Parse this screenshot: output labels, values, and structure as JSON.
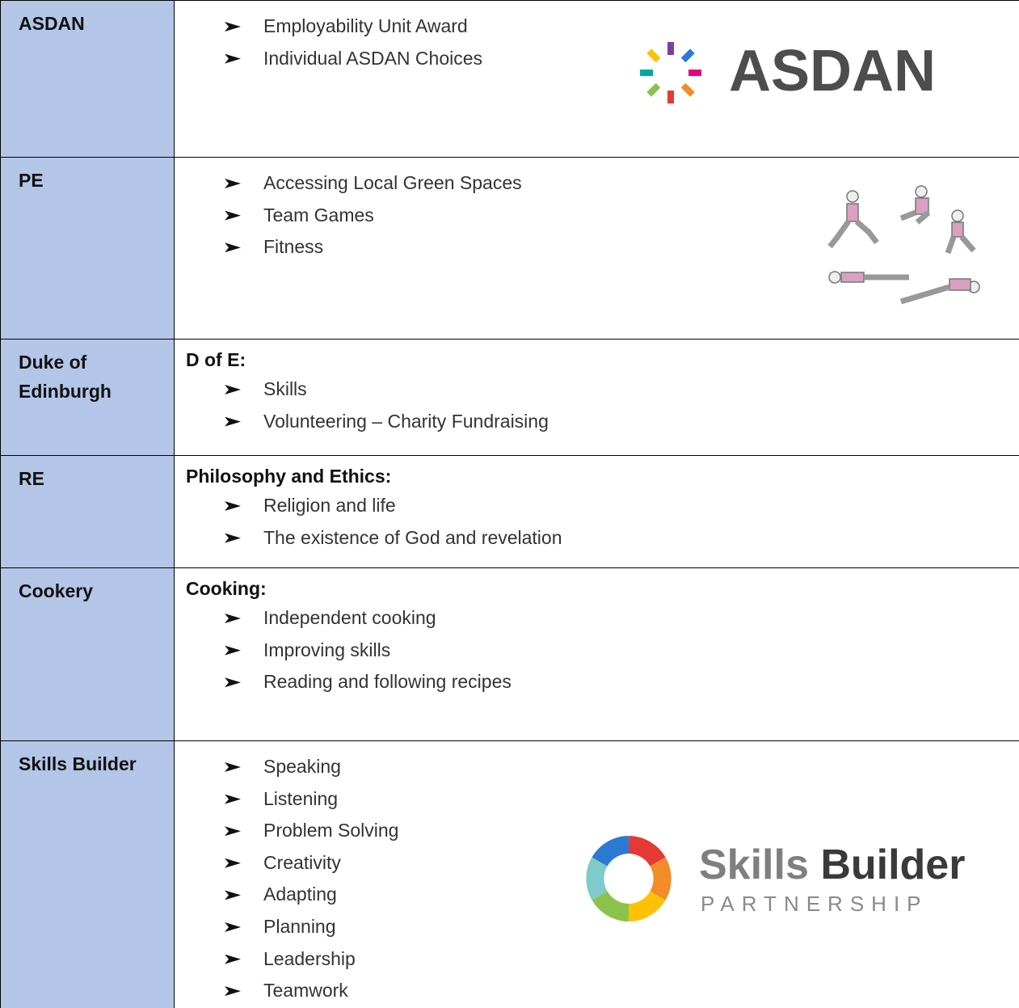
{
  "table": {
    "rows": [
      {
        "subject": "ASDAN",
        "items": [
          "Employability Unit Award",
          "Individual ASDAN Choices"
        ],
        "logo": {
          "text": "ASDAN"
        }
      },
      {
        "subject": "PE",
        "items": [
          "Accessing Local Green Spaces",
          "Team Games",
          "Fitness"
        ]
      },
      {
        "subject": "Duke of Edinburgh",
        "heading": "D of E:",
        "items": [
          "Skills",
          "Volunteering – Charity Fundraising"
        ]
      },
      {
        "subject": "RE",
        "heading": "Philosophy and Ethics:",
        "items": [
          "Religion and life",
          "The existence of God and revelation"
        ]
      },
      {
        "subject": "Cookery",
        "heading": "Cooking:",
        "items": [
          "Independent cooking",
          "Improving skills",
          "Reading and following recipes"
        ]
      },
      {
        "subject": "Skills Builder",
        "items": [
          "Speaking",
          "Listening",
          "Problem Solving",
          "Creativity",
          "Adapting",
          "Planning",
          "Leadership",
          "Teamwork"
        ],
        "logo": {
          "words": [
            "Skills",
            "Builder"
          ],
          "tagline": "PARTNERSHIP"
        }
      }
    ]
  }
}
